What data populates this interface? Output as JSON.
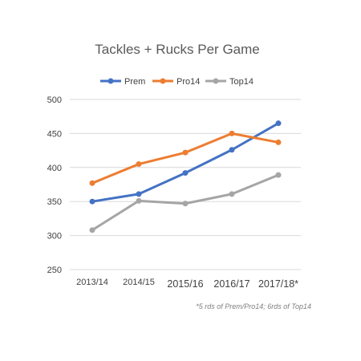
{
  "chart_data": {
    "type": "line",
    "title": "Tackles + Rucks Per Game",
    "categories": [
      "2013/14",
      "2014/15",
      "2015/16",
      "2016/17",
      "2017/18*"
    ],
    "series": [
      {
        "name": "Prem",
        "color": "#4472c4",
        "values": [
          350,
          361,
          392,
          426,
          465
        ]
      },
      {
        "name": "Pro14",
        "color": "#ed7d31",
        "values": [
          377,
          405,
          422,
          450,
          437
        ]
      },
      {
        "name": "Top14",
        "color": "#a5a5a5",
        "values": [
          308,
          351,
          347,
          361,
          389
        ]
      }
    ],
    "ylim": [
      250,
      500
    ],
    "yticks": [
      250,
      300,
      350,
      400,
      450,
      500
    ],
    "grid": true,
    "legend_position": "top",
    "footnote": "*5 rds of Prem/Pro14; 6rds of Top14"
  }
}
